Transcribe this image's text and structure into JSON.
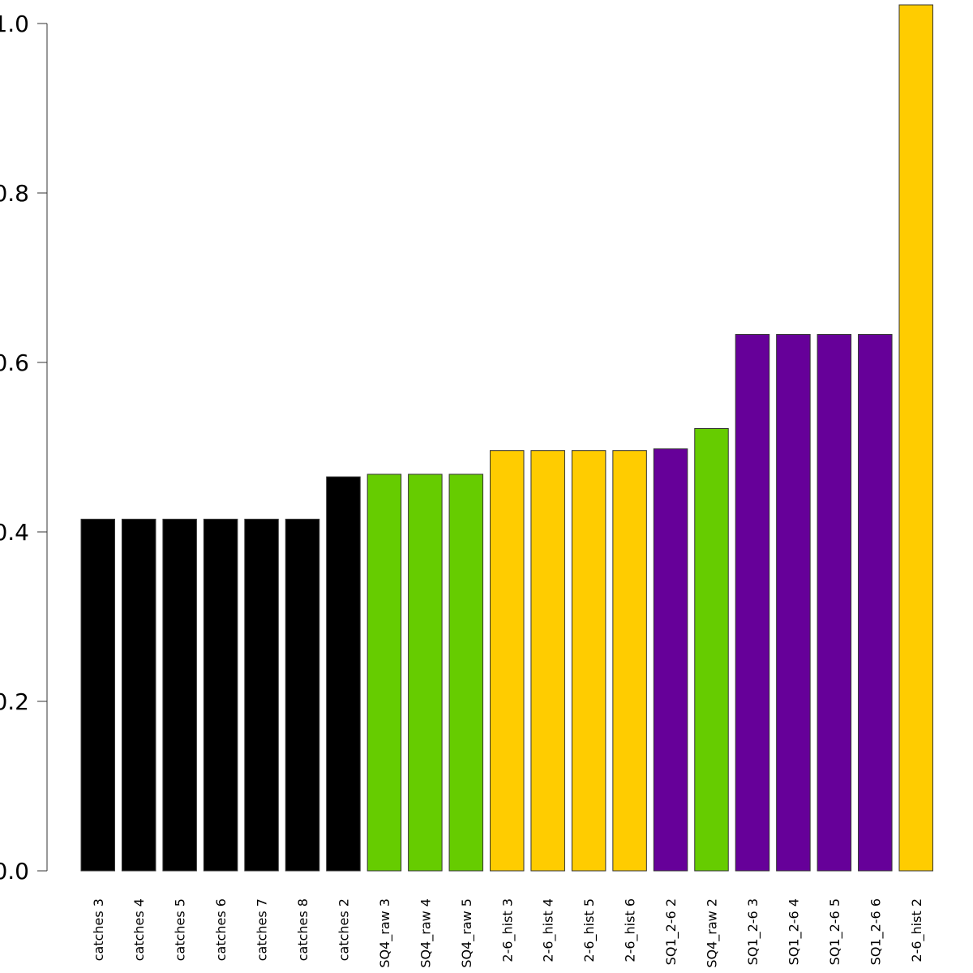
{
  "chart_data": {
    "type": "bar",
    "title": "",
    "xlabel": "",
    "ylabel": "",
    "ylim": [
      0,
      1.0
    ],
    "yticks": [
      "0.0",
      "0.2",
      "0.4",
      "0.6",
      "0.8",
      "1.0"
    ],
    "grid": false,
    "categories": [
      "catches 3",
      "catches 4",
      "catches 5",
      "catches 6",
      "catches 7",
      "catches 8",
      "catches 2",
      "SQ4_raw 3",
      "SQ4_raw 4",
      "SQ4_raw 5",
      "2-6_hist 3",
      "2-6_hist 4",
      "2-6_hist 5",
      "2-6_hist 6",
      "SQ1_2-6 2",
      "SQ4_raw 2",
      "SQ1_2-6 3",
      "SQ1_2-6 4",
      "SQ1_2-6 5",
      "SQ1_2-6 6",
      "2-6_hist 2"
    ],
    "values": [
      0.415,
      0.415,
      0.415,
      0.415,
      0.415,
      0.415,
      0.465,
      0.468,
      0.468,
      0.468,
      0.496,
      0.496,
      0.496,
      0.496,
      0.498,
      0.522,
      0.633,
      0.633,
      0.633,
      0.633,
      1.022
    ],
    "colors": [
      "#000000",
      "#000000",
      "#000000",
      "#000000",
      "#000000",
      "#000000",
      "#000000",
      "#66cc00",
      "#66cc00",
      "#66cc00",
      "#ffcc00",
      "#ffcc00",
      "#ffcc00",
      "#ffcc00",
      "#660099",
      "#66cc00",
      "#660099",
      "#660099",
      "#660099",
      "#660099",
      "#ffcc00"
    ]
  }
}
